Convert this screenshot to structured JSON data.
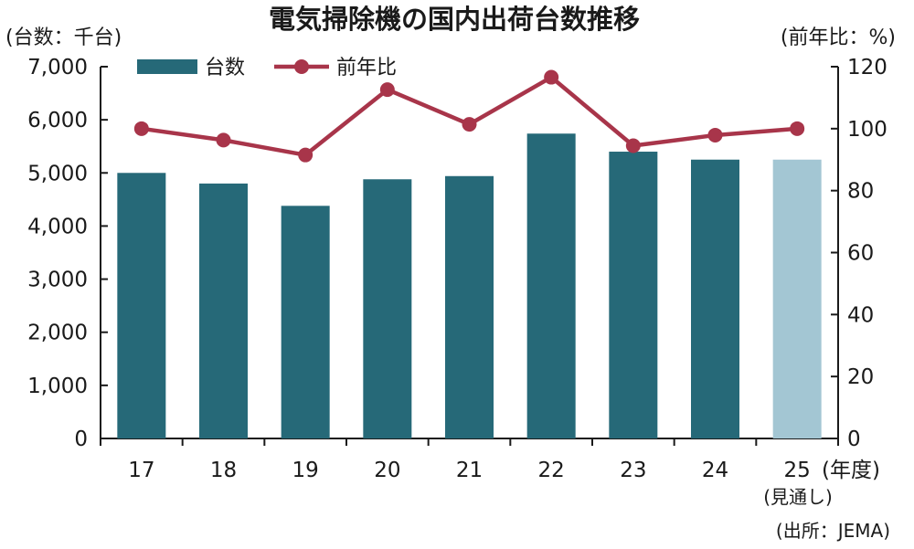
{
  "chart_data": {
    "type": "bar",
    "title": "電気掃除機の国内出荷台数推移",
    "left_axis_unit": "(台数：千台)",
    "right_axis_unit": "(前年比：%)",
    "x_unit": "(年度)",
    "projection_note": "(見通し)",
    "source": "(出所：JEMA)",
    "categories": [
      "17",
      "18",
      "19",
      "20",
      "21",
      "22",
      "23",
      "24",
      "25"
    ],
    "projection_index": 8,
    "y_left": {
      "min": 0,
      "max": 7000,
      "ticks": [
        0,
        1000,
        2000,
        3000,
        4000,
        5000,
        6000,
        7000
      ],
      "tick_labels": [
        "0",
        "1,000",
        "2,000",
        "3,000",
        "4,000",
        "5,000",
        "6,000",
        "7,000"
      ]
    },
    "y_right": {
      "min": 0,
      "max": 120,
      "ticks": [
        0,
        20,
        40,
        60,
        80,
        100,
        120
      ],
      "tick_labels": [
        "0",
        "20",
        "40",
        "60",
        "80",
        "100",
        "120"
      ]
    },
    "legend_position": "top-left",
    "series": [
      {
        "name": "台数",
        "kind": "bar",
        "axis": "left",
        "color": "#266978",
        "projection_color": "#a3c6d3",
        "values": [
          5000,
          4800,
          4380,
          4880,
          4940,
          5740,
          5400,
          5250,
          5250
        ]
      },
      {
        "name": "前年比",
        "kind": "line",
        "axis": "right",
        "color": "#a8354a",
        "values": [
          100.0,
          96.3,
          91.5,
          112.6,
          101.4,
          116.6,
          94.5,
          97.9,
          100.0
        ]
      }
    ]
  }
}
